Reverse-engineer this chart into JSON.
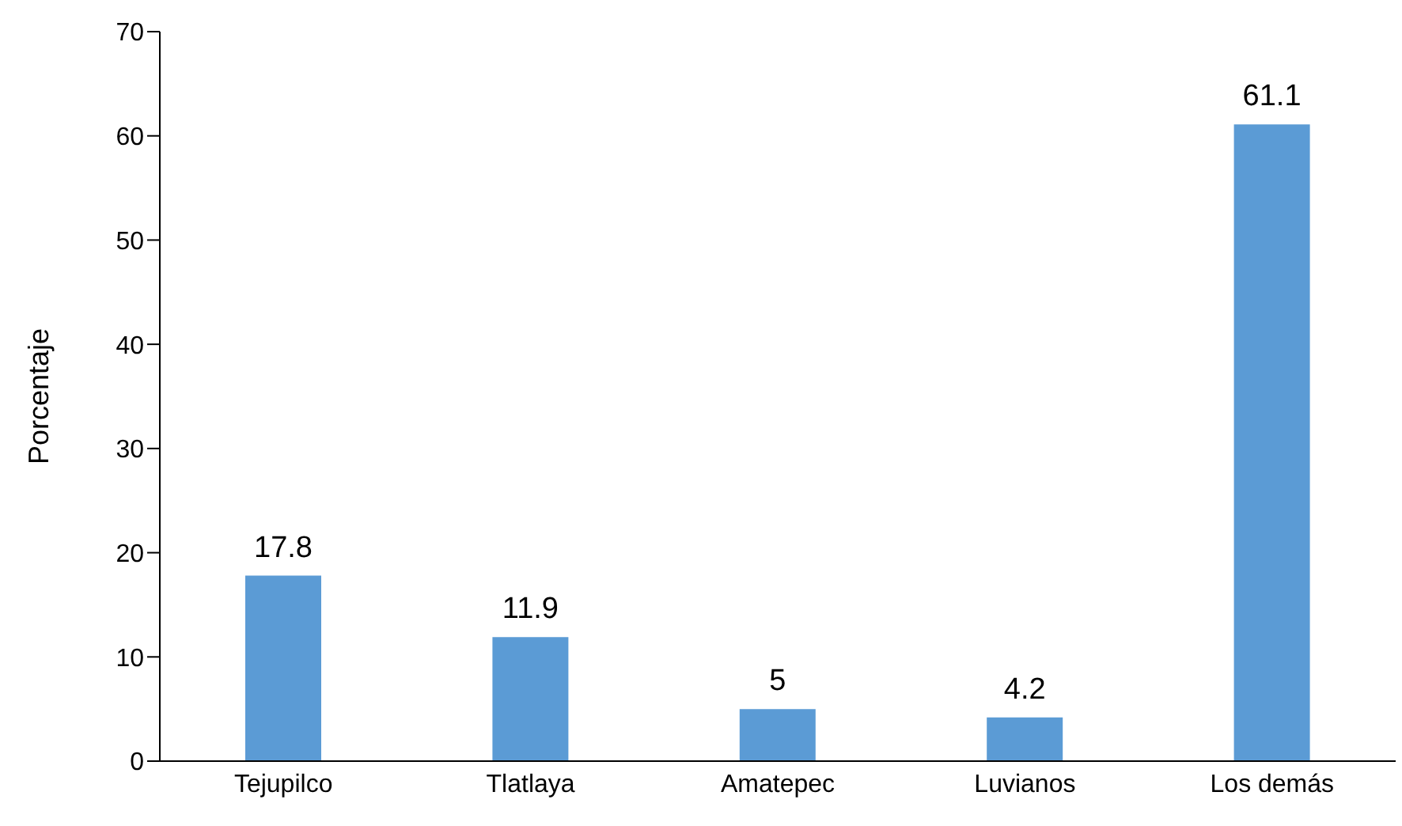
{
  "chart_data": {
    "type": "bar",
    "ylabel": "Porcentaje",
    "categories": [
      "Tejupilco",
      "Tlatlaya",
      "Amatepec",
      "Luvianos",
      "Los demás"
    ],
    "values": [
      17.8,
      11.9,
      5,
      4.2,
      61.1
    ],
    "color": "#5b9bd5",
    "ylim": [
      0,
      70
    ],
    "yticks": [
      0,
      10,
      20,
      30,
      40,
      50,
      60,
      70
    ],
    "grid": false,
    "data_labels": true
  }
}
